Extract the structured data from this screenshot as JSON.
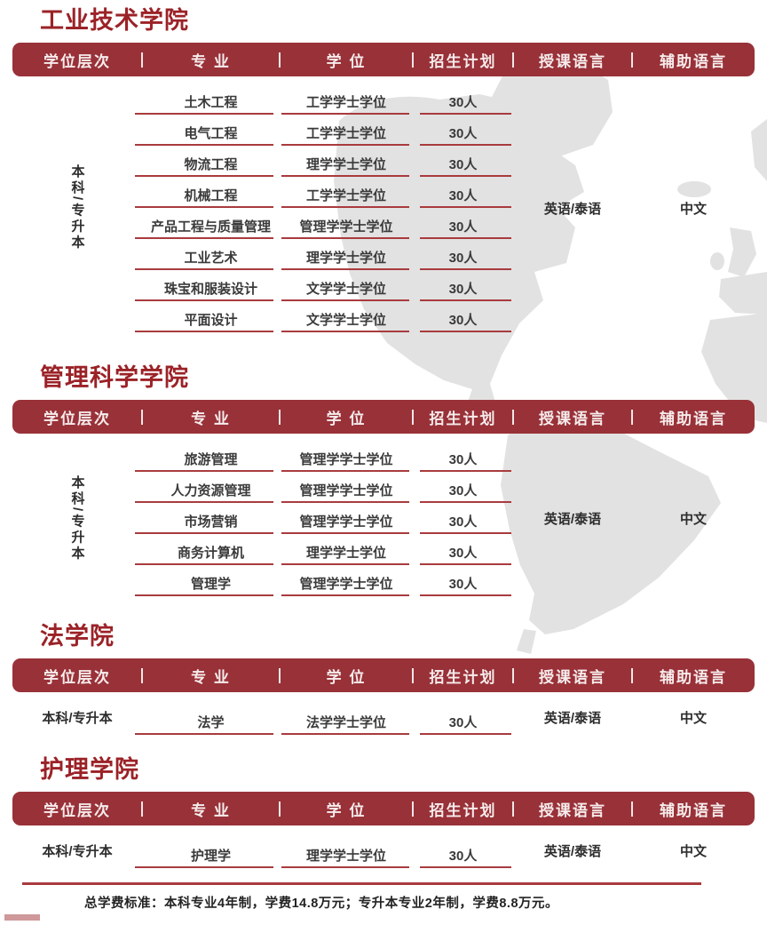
{
  "columns": [
    "学位层次",
    "专 业",
    "学 位",
    "招生计划",
    "授课语言",
    "辅助语言"
  ],
  "sections": [
    {
      "title": "工业技术学院",
      "degree_level": "本科/专升本",
      "vertical_level": true,
      "teaching_language": "英语/泰语",
      "auxiliary_language": "中文",
      "rows": [
        {
          "major": "土木工程",
          "degree": "工学学士学位",
          "quota": "30人"
        },
        {
          "major": "电气工程",
          "degree": "工学学士学位",
          "quota": "30人"
        },
        {
          "major": "物流工程",
          "degree": "理学学士学位",
          "quota": "30人"
        },
        {
          "major": "机械工程",
          "degree": "工学学士学位",
          "quota": "30人"
        },
        {
          "major": "产品工程与质量管理",
          "degree": "管理学学士学位",
          "quota": "30人"
        },
        {
          "major": "工业艺术",
          "degree": "理学学士学位",
          "quota": "30人"
        },
        {
          "major": "珠宝和服装设计",
          "degree": "文学学士学位",
          "quota": "30人"
        },
        {
          "major": "平面设计",
          "degree": "文学学士学位",
          "quota": "30人"
        }
      ]
    },
    {
      "title": "管理科学学院",
      "degree_level": "本科/专升本",
      "vertical_level": true,
      "teaching_language": "英语/泰语",
      "auxiliary_language": "中文",
      "rows": [
        {
          "major": "旅游管理",
          "degree": "管理学学士学位",
          "quota": "30人"
        },
        {
          "major": "人力资源管理",
          "degree": "管理学学士学位",
          "quota": "30人"
        },
        {
          "major": "市场营销",
          "degree": "管理学学士学位",
          "quota": "30人"
        },
        {
          "major": "商务计算机",
          "degree": "理学学士学位",
          "quota": "30人"
        },
        {
          "major": "管理学",
          "degree": "管理学学士学位",
          "quota": "30人"
        }
      ]
    },
    {
      "title": "法学院",
      "degree_level": "本科/专升本",
      "vertical_level": false,
      "teaching_language": "英语/泰语",
      "auxiliary_language": "中文",
      "rows": [
        {
          "major": "法学",
          "degree": "法学学士学位",
          "quota": "30人"
        }
      ]
    },
    {
      "title": "护理学院",
      "degree_level": "本科/专升本",
      "vertical_level": false,
      "teaching_language": "英语/泰语",
      "auxiliary_language": "中文",
      "rows": [
        {
          "major": "护理学",
          "degree": "理学学士学位",
          "quota": "30人"
        }
      ]
    }
  ],
  "footer": {
    "note": "总学费标准：本科专业4年制，学费14.8万元；专升本专业2年制，学费8.8万元。"
  },
  "colors": {
    "title_red": "#9b2227",
    "header_bar_red": "#993138",
    "underline_red": "#a93b3e",
    "map_gray": "#e2e2e2",
    "body_text": "#3a3a3a",
    "corner_pink": "#cf989a"
  }
}
